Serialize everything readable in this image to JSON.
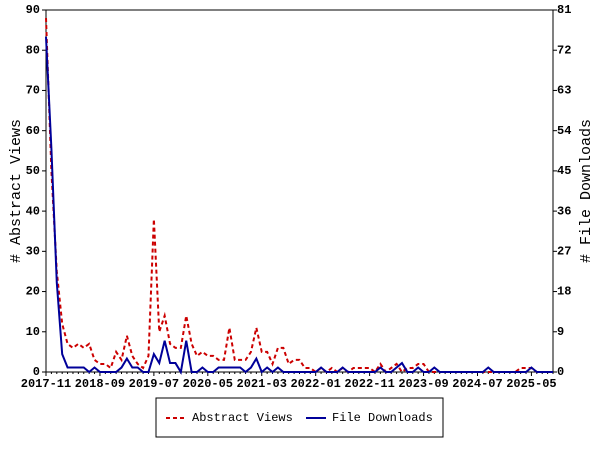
{
  "chart_data": {
    "type": "line",
    "categories": [
      "2017-11",
      null,
      null,
      null,
      null,
      null,
      null,
      null,
      null,
      null,
      "2018-09",
      null,
      null,
      null,
      null,
      null,
      null,
      null,
      null,
      null,
      "2019-07",
      null,
      null,
      null,
      null,
      null,
      null,
      null,
      null,
      null,
      "2020-05",
      null,
      null,
      null,
      null,
      null,
      null,
      null,
      null,
      null,
      "2021-03",
      null,
      null,
      null,
      null,
      null,
      null,
      null,
      null,
      null,
      "2022-01",
      null,
      null,
      null,
      null,
      null,
      null,
      null,
      null,
      null,
      "2022-11",
      null,
      null,
      null,
      null,
      null,
      null,
      null,
      null,
      null,
      "2023-09",
      null,
      null,
      null,
      null,
      null,
      null,
      null,
      null,
      null,
      "2024-07",
      null,
      null,
      null,
      null,
      null,
      null,
      null,
      null,
      null,
      "2025-05",
      null,
      null,
      null,
      null
    ],
    "ylabel": "# Abstract Views",
    "y2label": "# File Downloads",
    "ylim": [
      0,
      90
    ],
    "yticks": [
      0,
      10,
      20,
      30,
      40,
      50,
      60,
      70,
      80,
      90
    ],
    "y2lim": [
      0,
      81
    ],
    "y2ticks": [
      0,
      9,
      18,
      27,
      36,
      45,
      54,
      63,
      72,
      81
    ],
    "legend": "bottom",
    "series": [
      {
        "name": "Abstract Views",
        "color": "#cc0000",
        "dash": true,
        "axis": "y",
        "values": [
          88,
          50,
          25,
          12,
          7,
          6,
          7,
          6,
          7,
          3,
          2,
          2,
          1,
          5,
          3,
          9,
          4,
          2,
          1,
          4,
          38,
          10,
          14,
          7,
          6,
          6,
          14,
          7,
          4,
          5,
          4,
          4,
          3,
          3,
          11,
          3,
          3,
          3,
          5,
          11,
          5,
          5,
          2,
          6,
          6,
          2,
          3,
          3,
          1,
          1,
          0,
          1,
          0,
          1,
          0,
          1,
          0,
          1,
          1,
          1,
          1,
          0,
          2,
          0,
          1,
          2,
          0,
          1,
          1,
          2,
          2,
          0,
          0,
          0,
          0,
          0,
          0,
          0,
          0,
          0,
          0,
          0,
          0,
          0,
          0,
          0,
          0,
          0,
          1,
          1,
          1,
          0,
          0,
          0,
          0
        ]
      },
      {
        "name": "File Downloads",
        "color": "#000099",
        "dash": false,
        "axis": "y2",
        "values": [
          75,
          50,
          20,
          4,
          1,
          1,
          1,
          1,
          0,
          1,
          0,
          0,
          0,
          0,
          1,
          3,
          1,
          1,
          0,
          0,
          4,
          2,
          7,
          2,
          2,
          0,
          7,
          0,
          0,
          1,
          0,
          0,
          1,
          1,
          1,
          1,
          1,
          0,
          1,
          3,
          0,
          1,
          0,
          1,
          0,
          0,
          0,
          0,
          0,
          0,
          0,
          1,
          0,
          0,
          0,
          1,
          0,
          0,
          0,
          0,
          0,
          0,
          1,
          0,
          0,
          1,
          2,
          0,
          0,
          1,
          0,
          0,
          1,
          0,
          0,
          0,
          0,
          0,
          0,
          0,
          0,
          0,
          1,
          0,
          0,
          0,
          0,
          0,
          0,
          0,
          1,
          0,
          0,
          0,
          0
        ]
      }
    ]
  }
}
